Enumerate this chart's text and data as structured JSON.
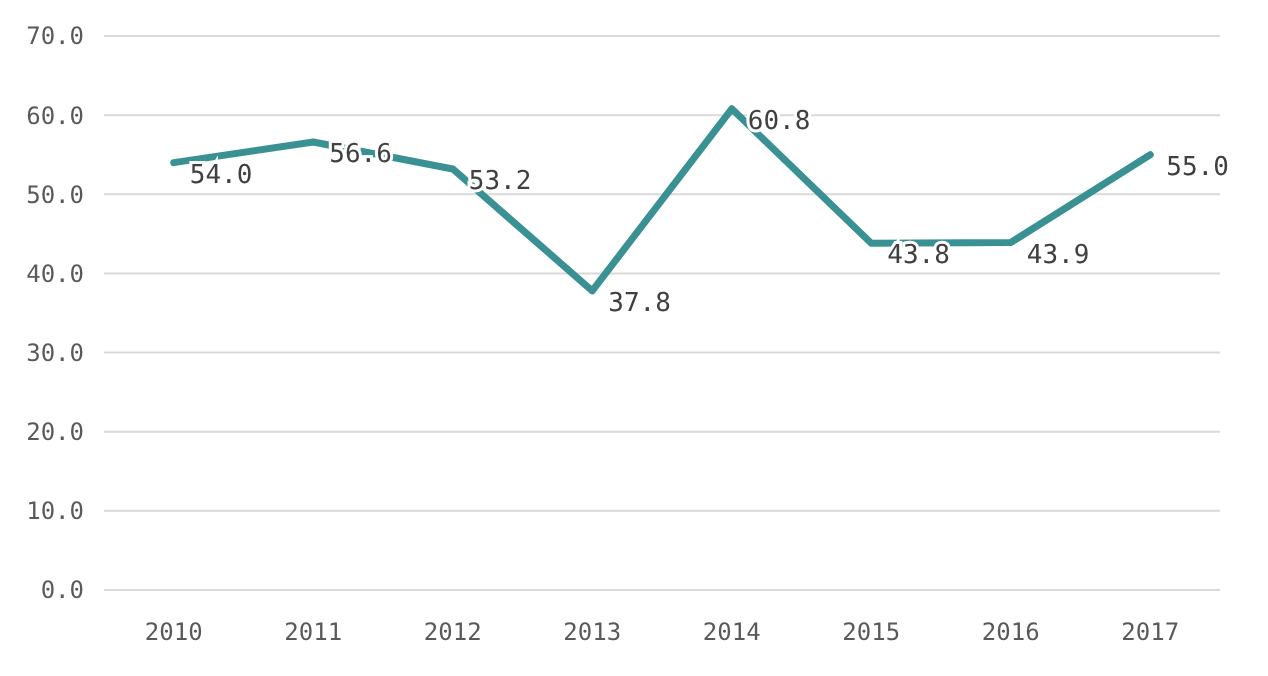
{
  "chart_data": {
    "type": "line",
    "categories": [
      "2010",
      "2011",
      "2012",
      "2013",
      "2014",
      "2015",
      "2016",
      "2017"
    ],
    "series": [
      {
        "color": "#3a9193",
        "values": [
          54.0,
          56.6,
          53.2,
          37.8,
          60.8,
          43.8,
          43.9,
          55.0
        ],
        "value_labels": [
          "54.0",
          "56.6",
          "53.2",
          "37.8",
          "60.8",
          "43.8",
          "43.9",
          "55.0"
        ]
      }
    ],
    "ylim": [
      0,
      70
    ],
    "yticks": [
      {
        "value": 0,
        "label": "0.0"
      },
      {
        "value": 10,
        "label": "10.0"
      },
      {
        "value": 20,
        "label": "20.0"
      },
      {
        "value": 30,
        "label": "30.0"
      },
      {
        "value": 40,
        "label": "40.0"
      },
      {
        "value": 50,
        "label": "50.0"
      },
      {
        "value": 60,
        "label": "60.0"
      },
      {
        "value": 70,
        "label": "70.0"
      }
    ],
    "grid": "y",
    "marker": "none",
    "line_style": "solid"
  }
}
